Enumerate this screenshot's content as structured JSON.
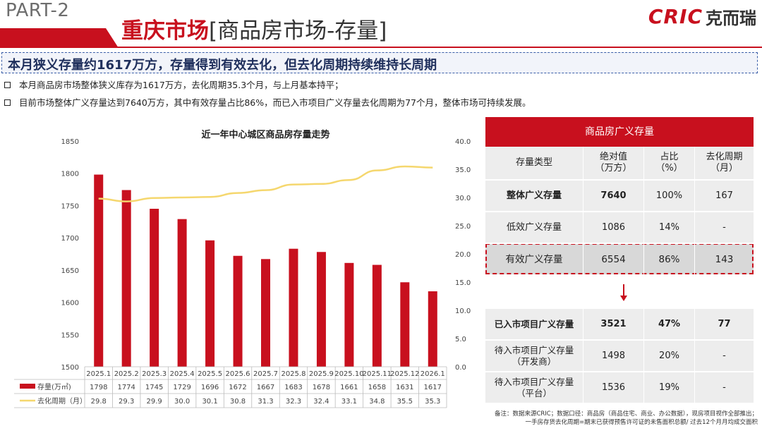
{
  "header": {
    "part": "PART-2",
    "title_main": "重庆市场",
    "title_sub": "[商品房市场-存量]",
    "logo_en": "CRIC",
    "logo_cn": "克而瑞"
  },
  "headline": "本月狭义存量约1617万方，存量得到有效去化，但去化周期持续维持长周期",
  "bullets": [
    "本月商品房市场整体狭义库存为1617万方，去化周期35.3个月，与上月基本持平；",
    "目前市场整体广义存量达到7640万方，其中有效存量占比86%，而已入市项目广义存量去化周期为77个月，整体市场可持续发展。"
  ],
  "chart_data": {
    "type": "bar+line",
    "title": "近一年中心城区商品房存量走势",
    "categories": [
      "2025.1",
      "2025.2",
      "2025.3",
      "2025.4",
      "2025.5",
      "2025.6",
      "2025.7",
      "2025.8",
      "2025.9",
      "2025.10",
      "2025.11",
      "2025.12",
      "2026.1"
    ],
    "series": [
      {
        "name": "存量(万㎡)",
        "type": "bar",
        "axis": "left",
        "color": "#c8101e",
        "values": [
          1798,
          1774,
          1745,
          1729,
          1696,
          1672,
          1667,
          1683,
          1678,
          1661,
          1658,
          1631,
          1617
        ]
      },
      {
        "name": "去化周期（月）",
        "type": "line",
        "axis": "right",
        "color": "#f5d76e",
        "values": [
          29.8,
          29.3,
          29.9,
          30.0,
          30.1,
          30.8,
          31.3,
          32.3,
          32.4,
          33.1,
          34.8,
          35.5,
          35.3
        ]
      }
    ],
    "y_left": {
      "min": 1500,
      "max": 1850,
      "ticks": [
        "1500",
        "1550",
        "1600",
        "1650",
        "1700",
        "1750",
        "1800",
        "1850"
      ]
    },
    "y_right": {
      "min": 0,
      "max": 40,
      "ticks": [
        "0.0",
        "5.0",
        "10.0",
        "15.0",
        "20.0",
        "25.0",
        "30.0",
        "35.0",
        "40.0"
      ]
    }
  },
  "table": {
    "title": "商品房广义存量",
    "headers": [
      "存量类型",
      "绝对值\n（万方）",
      "占比\n（%）",
      "去化周期\n（月）"
    ],
    "rows": [
      [
        "整体广义存量",
        "7640",
        "100%",
        "167"
      ],
      [
        "低效广义存量",
        "1086",
        "14%",
        "-"
      ],
      [
        "有效广义存量",
        "6554",
        "86%",
        "143"
      ]
    ],
    "rows2": [
      [
        "已入市项目广义存量",
        "3521",
        "47%",
        "77"
      ],
      [
        "待入市项目广义存量（开发商）",
        "1498",
        "20%",
        "-"
      ],
      [
        "待入市项目广义存量（平台）",
        "1536",
        "19%",
        "-"
      ]
    ]
  },
  "notes": [
    "备注：数据来源CRIC；数据口径：商品房（商品住宅、商业、办公数据），现房项目视作全部推出；",
    "一手房存货去化周期=期末已获得预售许可证的未售面积总额/ 过去12个月月均成交面积"
  ],
  "colors": {
    "accent": "#c8101e",
    "line": "#f5d76e",
    "navy": "#1f2f5c"
  }
}
